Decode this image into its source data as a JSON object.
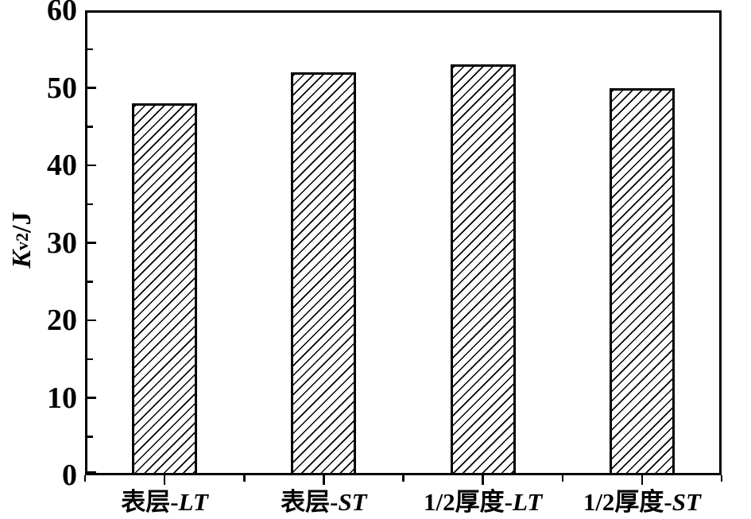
{
  "chart_data": {
    "type": "bar",
    "title": "",
    "xlabel": "",
    "ylabel": "Kv2/J",
    "ylabel_parts": {
      "base": "K",
      "sub": "v2",
      "rest": "/J"
    },
    "categories": [
      "表层-LT",
      "表层-ST",
      "1/2厚度-LT",
      "1/2厚度-ST"
    ],
    "category_parts": [
      {
        "prefix": "表层-",
        "suffix": "LT"
      },
      {
        "prefix": "表层-",
        "suffix": "ST"
      },
      {
        "prefix": "1/2厚度-",
        "suffix": "LT"
      },
      {
        "prefix": "1/2厚度-",
        "suffix": "ST"
      }
    ],
    "values": [
      48,
      52,
      53,
      50
    ],
    "ylim": [
      0,
      60
    ],
    "yticks_major": [
      0,
      10,
      20,
      30,
      40,
      50,
      60
    ],
    "yticks_minor_step": 5,
    "grid": false,
    "legend": null,
    "bar_style": {
      "fill": "#ffffff",
      "hatch": "diagonal-forward-slash",
      "outline": "#000000"
    },
    "colors": {
      "foreground": "#000000",
      "background": "#ffffff"
    }
  }
}
